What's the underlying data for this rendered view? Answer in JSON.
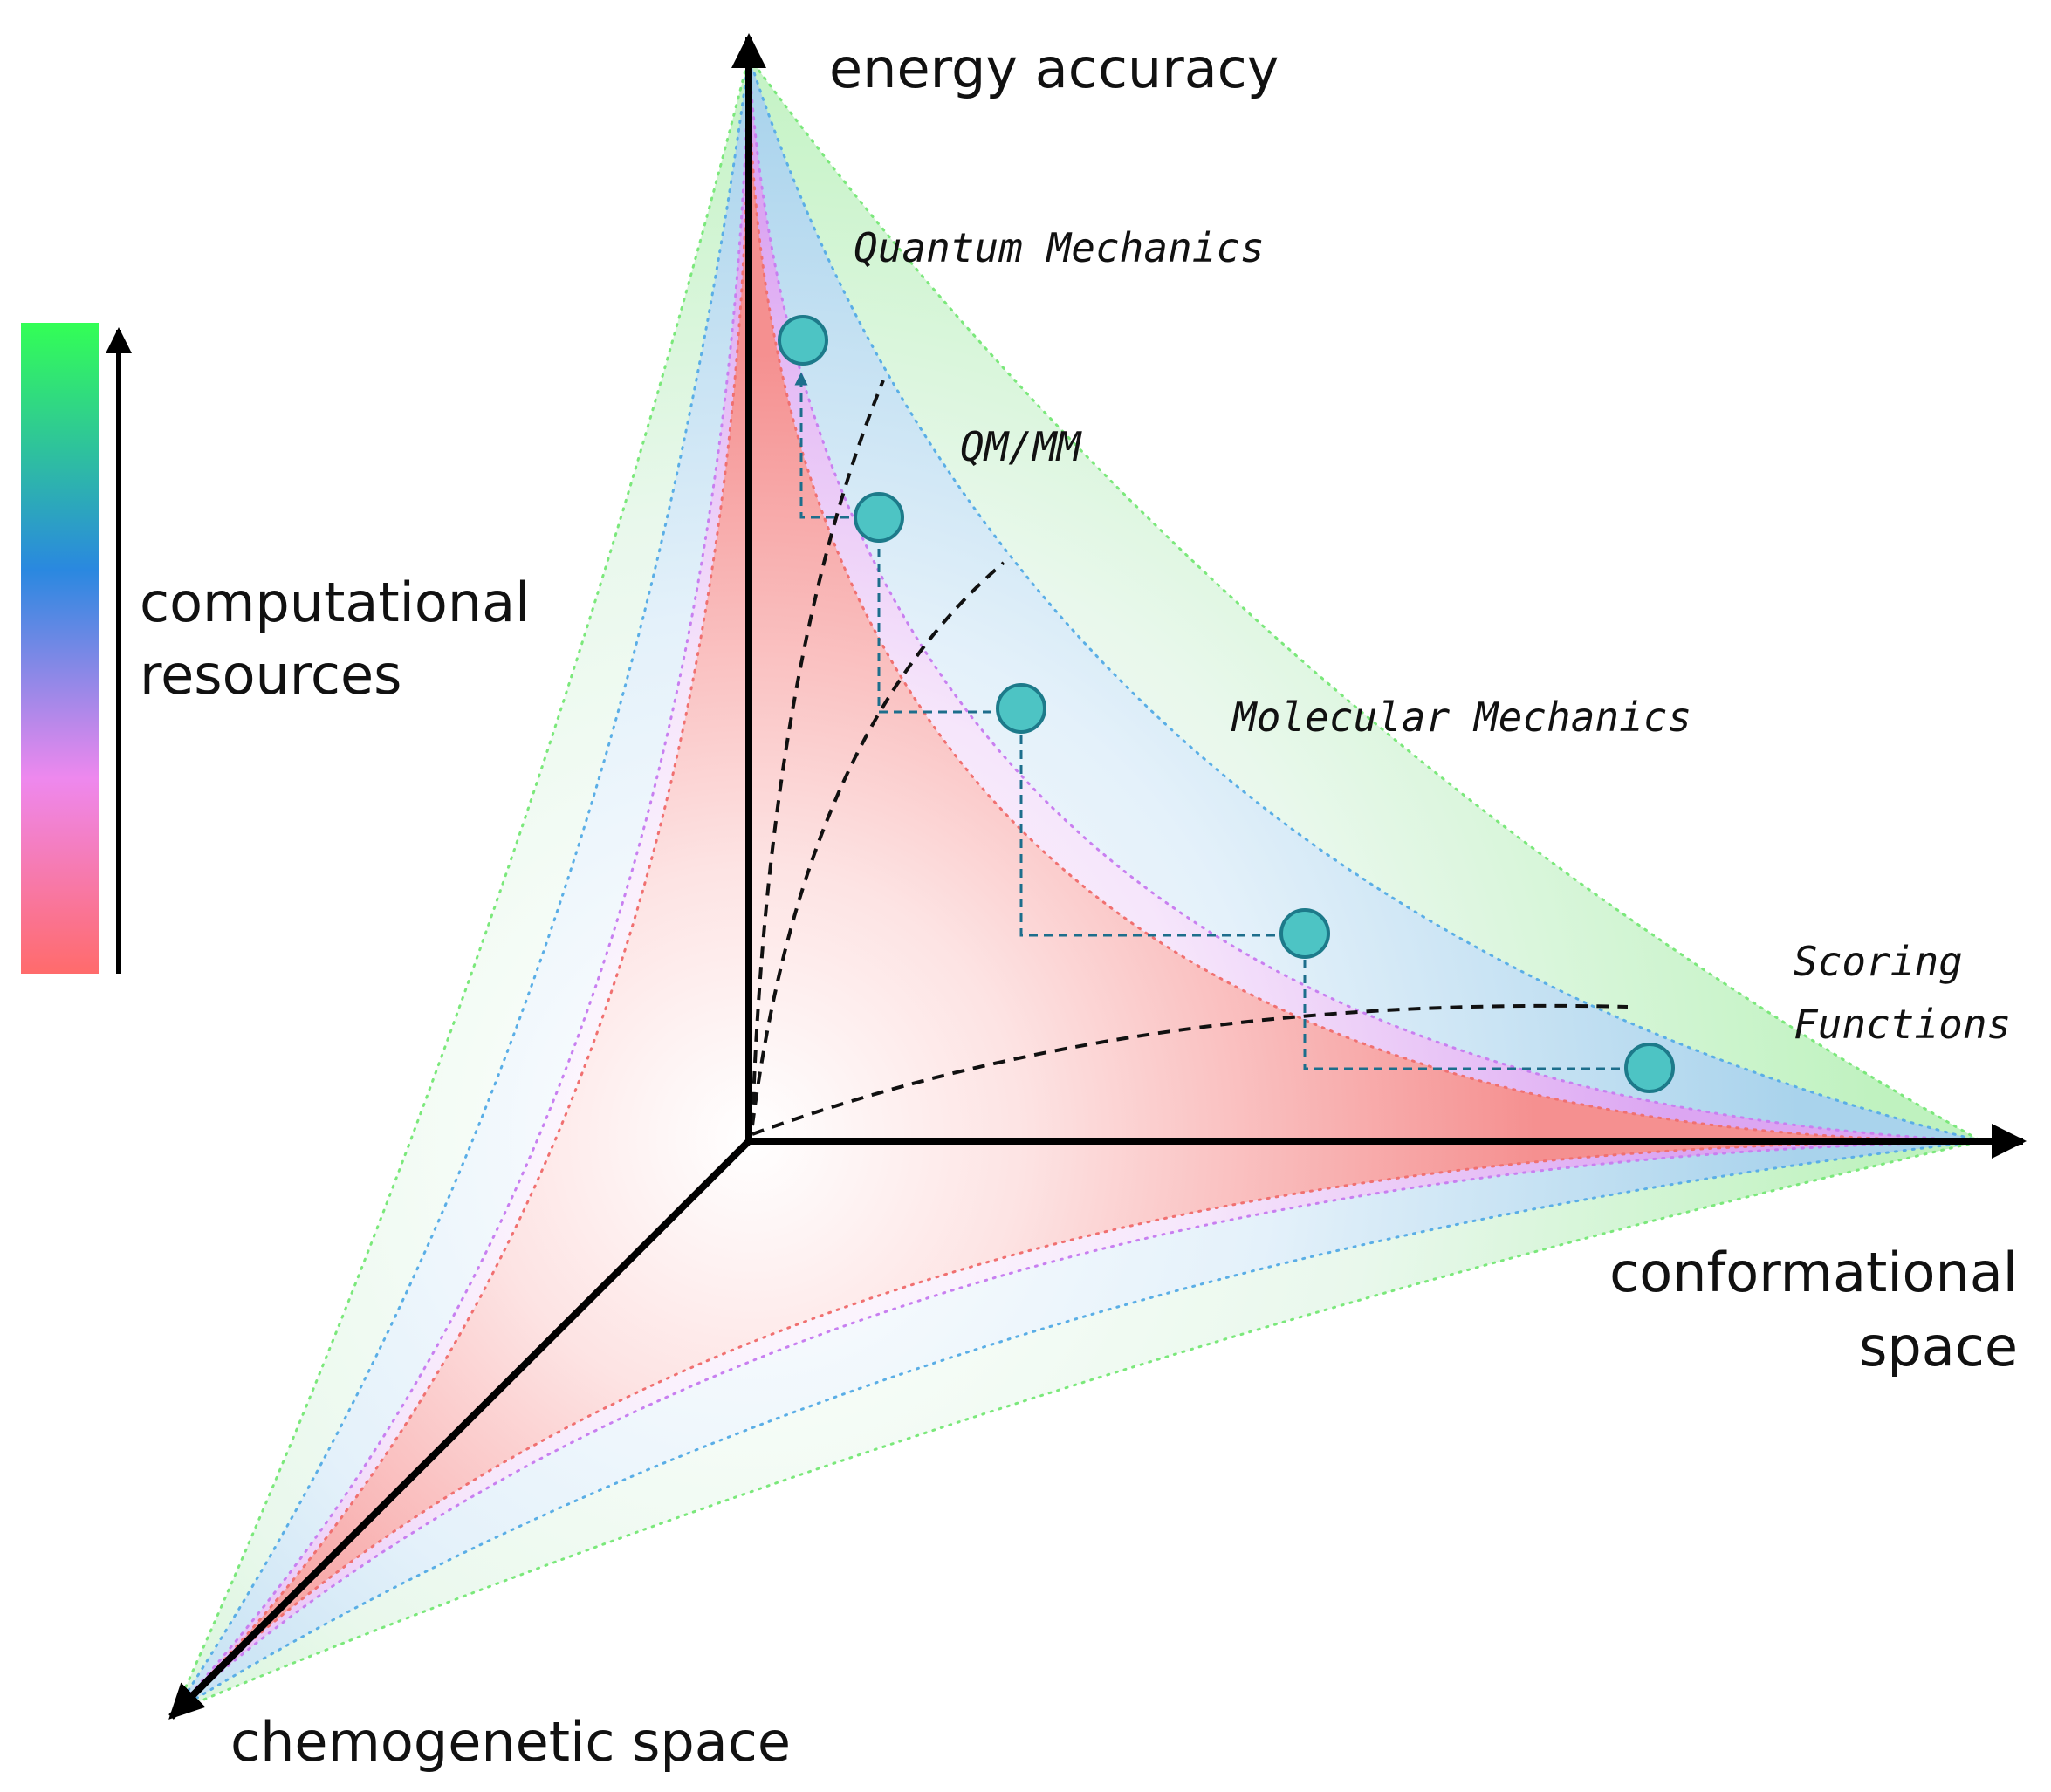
{
  "axes": {
    "energy": "energy accuracy",
    "conformational_line1": "conformational",
    "conformational_line2": "space",
    "chemogenetic": "chemogenetic space"
  },
  "methods": {
    "qm": "Quantum Mechanics",
    "qmmm": "QM/MM",
    "mm": "Molecular Mechanics",
    "sf_line1": "Scoring",
    "sf_line2": "Functions"
  },
  "legend": {
    "line1": "computational",
    "line2": "resources",
    "colors": [
      "#33ff55",
      "#2a88e0",
      "#ee88ee",
      "#ff6b6b"
    ]
  },
  "layer_colors": {
    "green": "#7be87b",
    "blue": "#5aaee6",
    "purple": "#c87ff0",
    "red": "#f07070",
    "marker": "#4dc4c4",
    "marker_stroke": "#1d7a8a",
    "path": "#1d6e8c"
  }
}
